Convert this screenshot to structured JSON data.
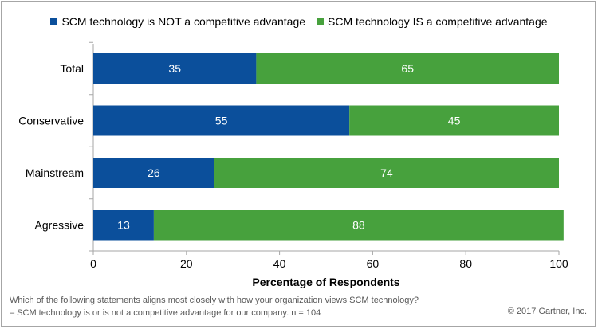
{
  "chart_data": {
    "type": "bar",
    "orientation": "horizontal",
    "stacked": true,
    "categories": [
      "Total",
      "Conservative",
      "Mainstream",
      "Agressive"
    ],
    "series": [
      {
        "name": "SCM technology is NOT a competitive advantage",
        "values": [
          35,
          55,
          26,
          13
        ],
        "color": "#0b4f9b"
      },
      {
        "name": "SCM technology IS a competitive advantage",
        "values": [
          65,
          45,
          74,
          88
        ],
        "color": "#47a13d"
      }
    ],
    "xlabel": "Percentage of Respondents",
    "xlim": [
      0,
      100
    ],
    "xticks": [
      0,
      20,
      40,
      60,
      80,
      100
    ],
    "grid": false,
    "legend_position": "top",
    "data_label_color": "#ffffff"
  },
  "footnote": {
    "line1": "Which of the following statements  aligns most closely with how your organization views SCM technology?",
    "line2": "– SCM technology is or is not a competitive  advantage  for our company.  n = 104"
  },
  "copyright": "© 2017 Gartner, Inc."
}
